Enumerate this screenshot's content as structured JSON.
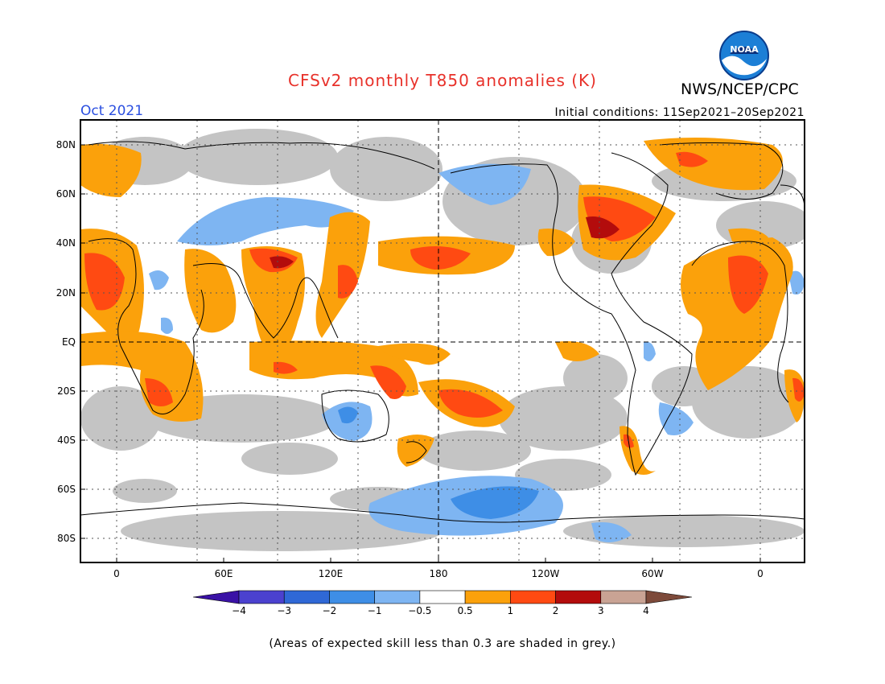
{
  "header": {
    "title": "CFSv2 monthly T850 anomalies (K)",
    "agency": "NWS/NCEP/CPC",
    "logo_text": "NOAA",
    "valid_month": "Oct 2021",
    "initial_conditions": "Initial conditions: 11Sep2021–20Sep2021"
  },
  "map": {
    "lat_labels": [
      "80N",
      "60N",
      "40N",
      "20N",
      "EQ",
      "20S",
      "40S",
      "60S",
      "80S"
    ],
    "lon_labels": [
      "0",
      "60E",
      "120E",
      "180",
      "120W",
      "60W",
      "0"
    ],
    "grid": "dotted",
    "reference_lines": [
      "equator",
      "dateline"
    ]
  },
  "colorbar": {
    "ticks": [
      "−4",
      "−3",
      "−2",
      "−1",
      "−0.5",
      "0.5",
      "1",
      "2",
      "3",
      "4"
    ],
    "colors": [
      "#3a12a6",
      "#4b41cf",
      "#2f68d6",
      "#3e8ee6",
      "#7eb5f2",
      "#ffffff",
      "#fba10b",
      "#ff4a12",
      "#b30c0c",
      "#c9a394",
      "#7d4a3a"
    ],
    "low_arrow_color": "#3a12a6",
    "high_arrow_color": "#7d4a3a"
  },
  "footnote": "(Areas of expected skill less than 0.3 are shaded in grey.)",
  "colors": {
    "title": "#e8312a",
    "month": "#2b4fe0",
    "no_skill_grey": "#c4c4c4",
    "orange": "#fba10b",
    "red": "#ff4a12",
    "darkred": "#b30c0c",
    "lightblue": "#7eb5f2",
    "blue": "#3e8ee6",
    "medblue": "#2f68d6"
  }
}
